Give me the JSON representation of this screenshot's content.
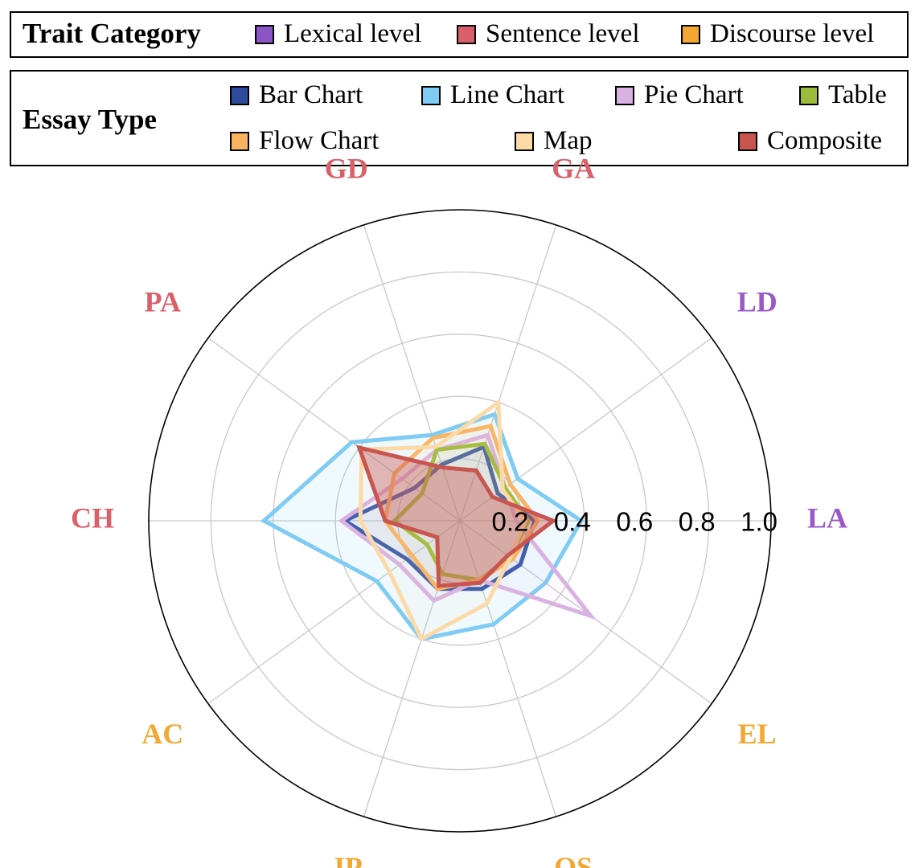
{
  "legend_trait": {
    "title": "Trait Category",
    "items": [
      {
        "label": "Lexical level",
        "color": "#8b55c8"
      },
      {
        "label": "Sentence level",
        "color": "#d9606a"
      },
      {
        "label": "Discourse level",
        "color": "#f5a733"
      }
    ]
  },
  "legend_essay": {
    "title": "Essay Type"
  },
  "chart_data": {
    "type": "radar",
    "axes": [
      {
        "label": "LA",
        "category": "Lexical level",
        "color": "#9b59c8"
      },
      {
        "label": "LD",
        "category": "Lexical level",
        "color": "#9b59c8"
      },
      {
        "label": "GA",
        "category": "Sentence level",
        "color": "#d9606a"
      },
      {
        "label": "GD",
        "category": "Sentence level",
        "color": "#d9606a"
      },
      {
        "label": "PA",
        "category": "Sentence level",
        "color": "#d9606a"
      },
      {
        "label": "CH",
        "category": "Sentence level",
        "color": "#d9606a"
      },
      {
        "label": "AC",
        "category": "Discourse level",
        "color": "#f5a733"
      },
      {
        "label": "JP",
        "category": "Discourse level",
        "color": "#f5a733"
      },
      {
        "label": "OS",
        "category": "Discourse level",
        "color": "#f5a733"
      },
      {
        "label": "EL",
        "category": "Discourse level",
        "color": "#f5a733"
      }
    ],
    "radial_ticks": [
      "0.2",
      "0.4",
      "0.6",
      "0.8",
      "1.0"
    ],
    "rlim": [
      0,
      1.0
    ],
    "grid": true,
    "series": [
      {
        "name": "Bar Chart",
        "color": "#2e4a9c",
        "fill": false,
        "values": [
          0.24,
          0.15,
          0.25,
          0.19,
          0.18,
          0.37,
          0.21,
          0.23,
          0.23,
          0.24
        ]
      },
      {
        "name": "Line Chart",
        "color": "#7ecbf4",
        "fill": true,
        "values": [
          0.39,
          0.23,
          0.36,
          0.29,
          0.43,
          0.63,
          0.33,
          0.4,
          0.35,
          0.34
        ]
      },
      {
        "name": "Pie Chart",
        "color": "#d9b2e2",
        "fill": false,
        "values": [
          0.18,
          0.18,
          0.29,
          0.24,
          0.23,
          0.38,
          0.24,
          0.27,
          0.2,
          0.52
        ]
      },
      {
        "name": "Table",
        "color": "#9dbb3a",
        "fill": false,
        "values": [
          0.22,
          0.18,
          0.26,
          0.24,
          0.15,
          0.21,
          0.13,
          0.18,
          0.2,
          0.2
        ]
      },
      {
        "name": "Flow Chart",
        "color": "#f9b462",
        "fill": false,
        "values": [
          0.25,
          0.2,
          0.32,
          0.28,
          0.26,
          0.24,
          0.19,
          0.23,
          0.2,
          0.21
        ]
      },
      {
        "name": "Map",
        "color": "#fcdaa8",
        "fill": false,
        "values": [
          0.21,
          0.17,
          0.4,
          0.25,
          0.39,
          0.32,
          0.28,
          0.4,
          0.28,
          0.2
        ]
      },
      {
        "name": "Composite",
        "color": "#c85550",
        "fill": true,
        "values": [
          0.3,
          0.13,
          0.17,
          0.18,
          0.4,
          0.24,
          0.09,
          0.22,
          0.21,
          0.19
        ]
      }
    ]
  }
}
